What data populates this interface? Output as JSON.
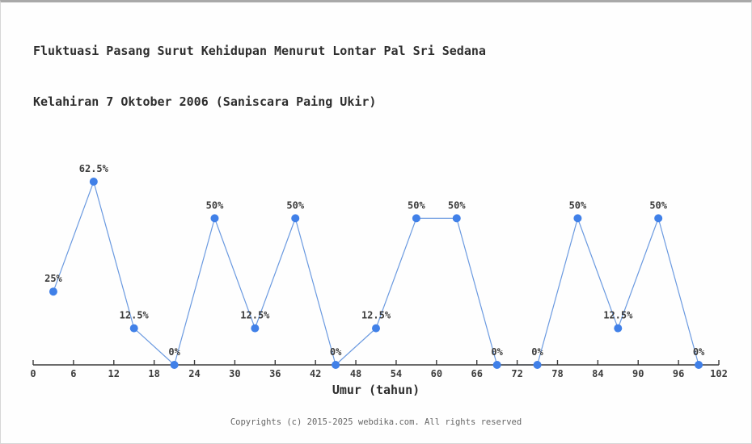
{
  "page": {
    "title_line1": "Fluktuasi Pasang Surut Kehidupan Menurut Lontar Pal Sri Sedana",
    "title_line2": "Kelahiran 7 Oktober 2006 (Saniscara Paing Ukir)"
  },
  "chart_data": {
    "type": "line",
    "title": "Fluktuasi Pasang Surut Kehidupan Menurut Lontar Pal Sri Sedana Kelahiran 7 Oktober 2006 (Saniscara Paing Ukir)",
    "xlabel": "Umur (tahun)",
    "ylabel": "",
    "x": [
      3,
      9,
      15,
      21,
      27,
      33,
      39,
      45,
      51,
      57,
      63,
      69,
      75,
      81,
      87,
      93,
      99
    ],
    "values": [
      25,
      62.5,
      12.5,
      0,
      50,
      12.5,
      50,
      0,
      12.5,
      50,
      50,
      0,
      0,
      50,
      12.5,
      50,
      0
    ],
    "point_labels": [
      "25%",
      "62.5%",
      "12.5%",
      "0%",
      "50%",
      "12.5%",
      "50%",
      "0%",
      "12.5%",
      "50%",
      "50%",
      "0%",
      "0%",
      "50%",
      "12.5%",
      "50%",
      "0%"
    ],
    "x_ticks": [
      0,
      6,
      12,
      18,
      24,
      30,
      36,
      42,
      48,
      54,
      60,
      66,
      72,
      78,
      84,
      90,
      96,
      102
    ],
    "xlim": [
      0,
      102
    ],
    "ylim": [
      0,
      62.5
    ],
    "grid": false,
    "legend_position": "none",
    "colors": {
      "marker": "#4080e8",
      "line": "#6b9ae0",
      "axis": "#3c3c3c",
      "label_text": "#3c3c3c"
    }
  },
  "footer": {
    "copyright": "Copyrights (c) 2015-2025 webdika.com. All rights reserved"
  }
}
